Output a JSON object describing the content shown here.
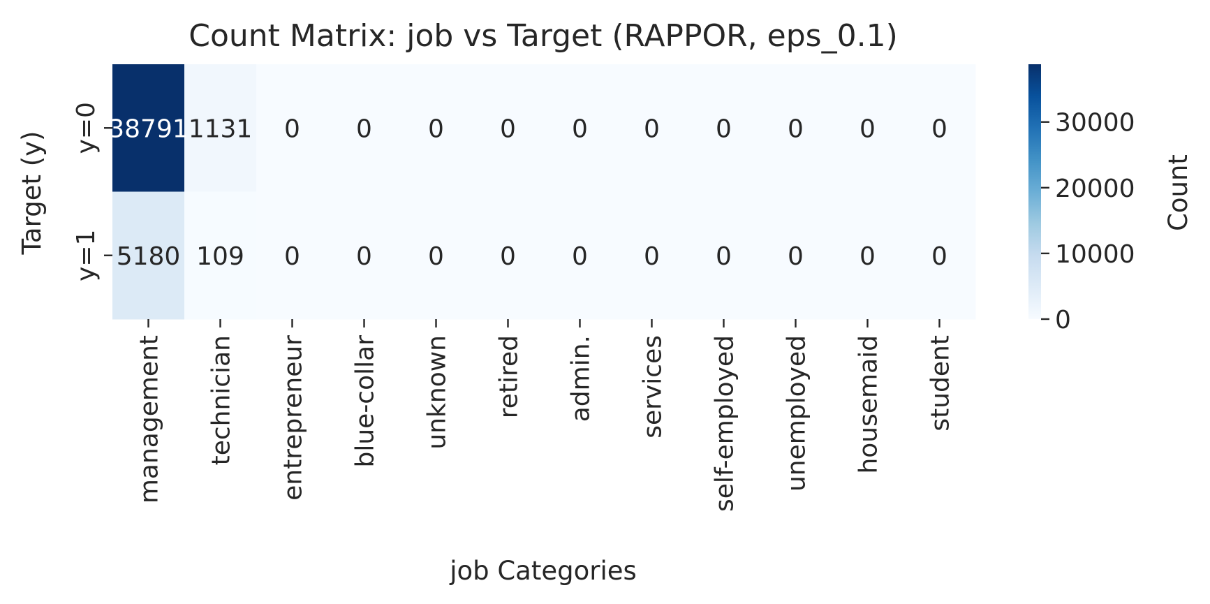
{
  "chart_data": {
    "type": "heatmap",
    "title": "Count Matrix: job vs Target (RAPPOR, eps_0.1)",
    "xlabel": "job Categories",
    "ylabel": "Target (y)",
    "x_categories": [
      "management",
      "technician",
      "entrepreneur",
      "blue-collar",
      "unknown",
      "retired",
      "admin.",
      "services",
      "self-employed",
      "unemployed",
      "housemaid",
      "student"
    ],
    "y_categories": [
      "y=0",
      "y=1"
    ],
    "values": [
      [
        38791,
        1131,
        0,
        0,
        0,
        0,
        0,
        0,
        0,
        0,
        0,
        0
      ],
      [
        5180,
        109,
        0,
        0,
        0,
        0,
        0,
        0,
        0,
        0,
        0,
        0
      ]
    ],
    "cell_labels": [
      [
        "38791",
        "1131",
        "0",
        "0",
        "0",
        "0",
        "0",
        "0",
        "0",
        "0",
        "0",
        "0"
      ],
      [
        "5180",
        "109",
        "0",
        "0",
        "0",
        "0",
        "0",
        "0",
        "0",
        "0",
        "0",
        "0"
      ]
    ],
    "colorbar": {
      "label": "Count",
      "colormap": "Blues",
      "range": [
        0,
        38791
      ],
      "ticks": [
        0,
        10000,
        20000,
        30000
      ],
      "tick_labels": [
        "0",
        "10000",
        "20000",
        "30000"
      ]
    },
    "grid": false
  }
}
